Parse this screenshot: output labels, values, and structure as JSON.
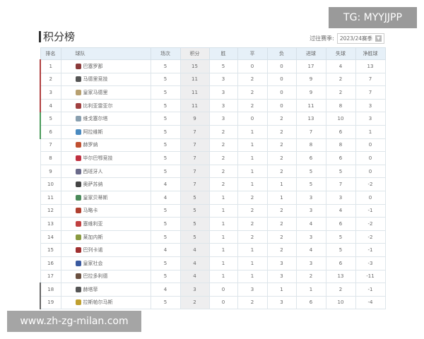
{
  "title": "积分榜",
  "season": {
    "label": "过往赛季:",
    "value": "2023/24赛季"
  },
  "headers": [
    "排名",
    "球队",
    "场次",
    "积分",
    "胜",
    "平",
    "负",
    "进球",
    "失球",
    "净胜球"
  ],
  "zone_colors": {
    "top4": "#b04040",
    "europa": "#4a9a5a",
    "relegation": "#666666"
  },
  "rows": [
    [
      "1",
      "巴塞罗那",
      "5",
      "15",
      "5",
      "0",
      "0",
      "17",
      "4",
      "13"
    ],
    [
      "2",
      "马德里竞技",
      "5",
      "11",
      "3",
      "2",
      "0",
      "9",
      "2",
      "7"
    ],
    [
      "3",
      "皇家马德里",
      "5",
      "11",
      "3",
      "2",
      "0",
      "9",
      "2",
      "7"
    ],
    [
      "4",
      "比利亚雷亚尔",
      "5",
      "11",
      "3",
      "2",
      "0",
      "11",
      "8",
      "3"
    ],
    [
      "5",
      "维戈塞尔塔",
      "5",
      "9",
      "3",
      "0",
      "2",
      "13",
      "10",
      "3"
    ],
    [
      "6",
      "阿拉维斯",
      "5",
      "7",
      "2",
      "1",
      "2",
      "7",
      "6",
      "1"
    ],
    [
      "7",
      "赫罗纳",
      "5",
      "7",
      "2",
      "1",
      "2",
      "8",
      "8",
      "0"
    ],
    [
      "8",
      "毕尔巴鄂竞技",
      "5",
      "7",
      "2",
      "1",
      "2",
      "6",
      "6",
      "0"
    ],
    [
      "9",
      "西班牙人",
      "5",
      "7",
      "2",
      "1",
      "2",
      "5",
      "5",
      "0"
    ],
    [
      "10",
      "奥萨苏纳",
      "4",
      "7",
      "2",
      "1",
      "1",
      "5",
      "7",
      "-2"
    ],
    [
      "11",
      "皇家贝蒂斯",
      "4",
      "5",
      "1",
      "2",
      "1",
      "3",
      "3",
      "0"
    ],
    [
      "12",
      "马略卡",
      "5",
      "5",
      "1",
      "2",
      "2",
      "3",
      "4",
      "-1"
    ],
    [
      "13",
      "塞维利亚",
      "5",
      "5",
      "1",
      "2",
      "2",
      "4",
      "6",
      "-2"
    ],
    [
      "14",
      "莱加内斯",
      "5",
      "5",
      "1",
      "2",
      "2",
      "3",
      "5",
      "-2"
    ],
    [
      "15",
      "巴列卡诺",
      "4",
      "4",
      "1",
      "1",
      "2",
      "4",
      "5",
      "-1"
    ],
    [
      "16",
      "皇家社会",
      "5",
      "4",
      "1",
      "1",
      "3",
      "3",
      "6",
      "-3"
    ],
    [
      "17",
      "巴拉多利德",
      "5",
      "4",
      "1",
      "1",
      "3",
      "2",
      "13",
      "-11"
    ],
    [
      "18",
      "赫塔菲",
      "4",
      "3",
      "0",
      "3",
      "1",
      "1",
      "2",
      "-1"
    ],
    [
      "19",
      "拉斯帕尔马斯",
      "5",
      "2",
      "0",
      "2",
      "3",
      "6",
      "10",
      "-4"
    ]
  ],
  "overlays": {
    "tg": "TG: MYYJJPP",
    "site": "www.zh-zg-milan.com"
  }
}
